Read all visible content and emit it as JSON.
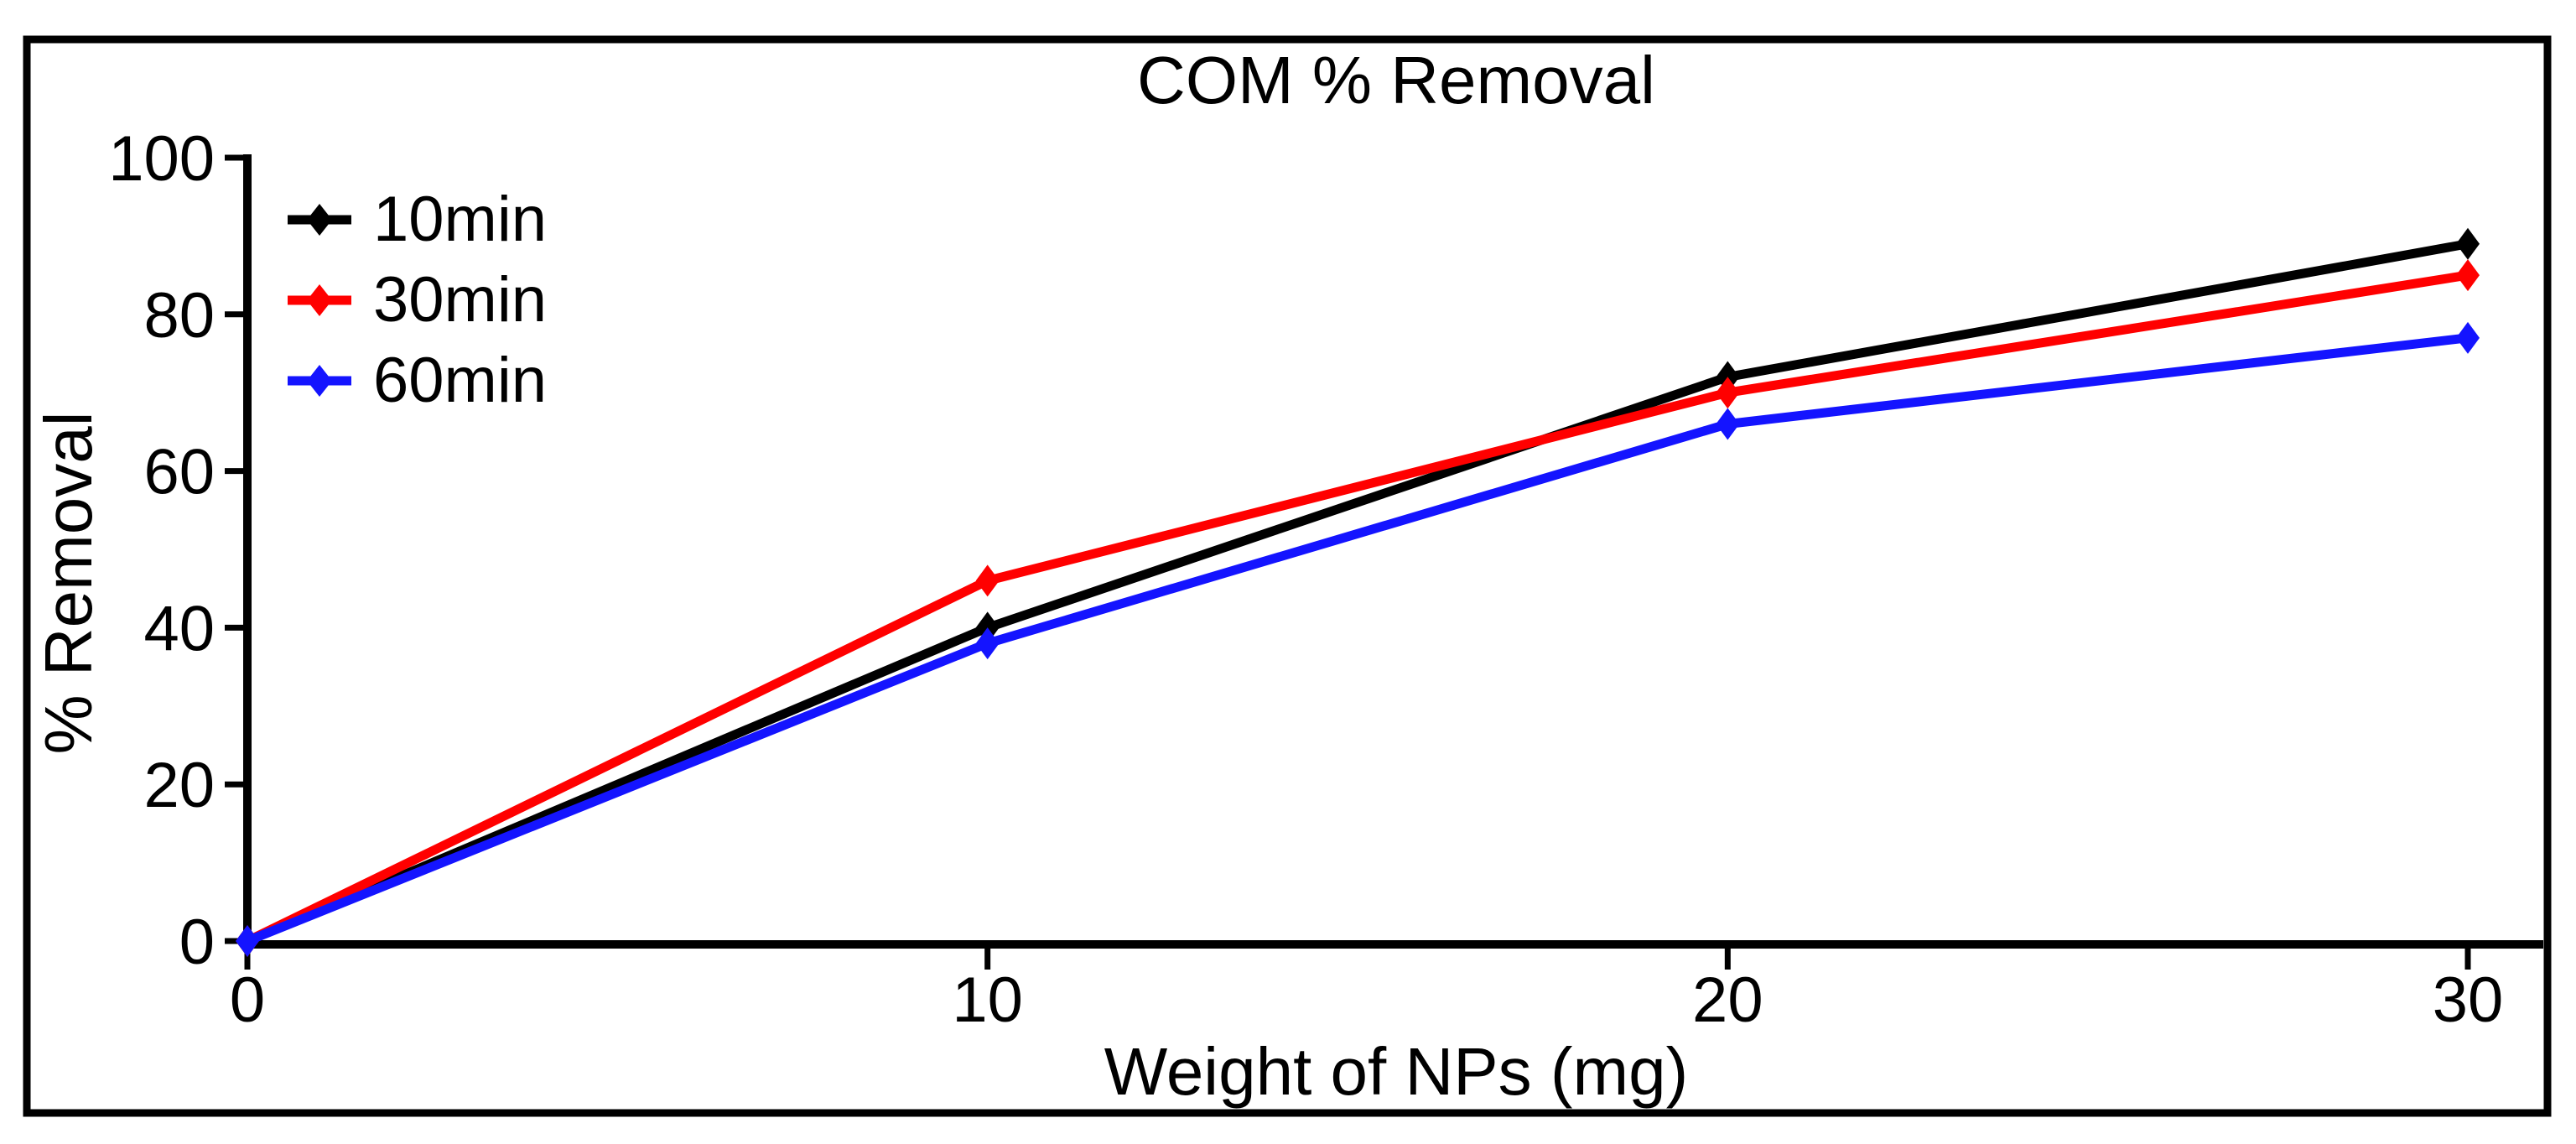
{
  "chart_data": {
    "type": "line",
    "title": "COM % Removal",
    "xlabel": "Weight of NPs (mg)",
    "ylabel": "% Removal",
    "x": [
      0,
      10,
      20,
      30
    ],
    "series": [
      {
        "name": "10min",
        "color": "#000000",
        "values": [
          0,
          40,
          72,
          89
        ]
      },
      {
        "name": "30min",
        "color": "#ff0000",
        "values": [
          0,
          46,
          70,
          85
        ]
      },
      {
        "name": "60min",
        "color": "#1414ff",
        "values": [
          0,
          38,
          66,
          77
        ]
      }
    ],
    "xticks": [
      0,
      10,
      20,
      30
    ],
    "yticks": [
      0,
      20,
      40,
      60,
      80,
      100
    ],
    "xlim": [
      0,
      30
    ],
    "ylim": [
      0,
      100
    ],
    "grid": false,
    "legend_position": "top-left",
    "marker": "diamond",
    "axis_color": "#000000",
    "background_color": "#ffffff"
  }
}
